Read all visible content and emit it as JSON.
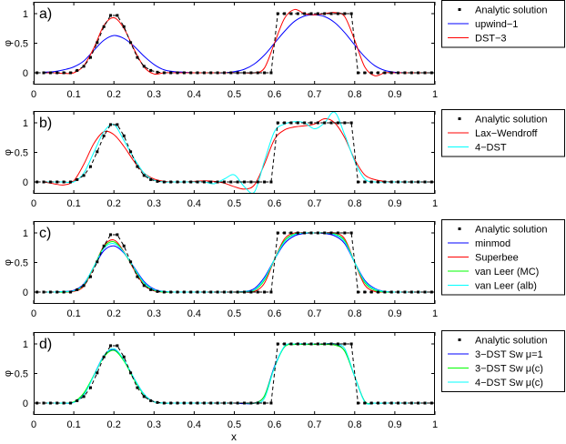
{
  "chart_data": {
    "type": "line",
    "xlabel": "x",
    "ylabel": "φ",
    "xlim": [
      0,
      1
    ],
    "ylim": [
      -0.2,
      1.2
    ],
    "x_ticks": [
      "0",
      "0.1",
      "0.2",
      "0.3",
      "0.4",
      "0.5",
      "0.6",
      "0.7",
      "0.8",
      "0.9",
      "1"
    ],
    "y_ticks": [
      "0",
      "0.5",
      "1"
    ],
    "grid": false,
    "legend_position": "outside-right",
    "colors": {
      "blue": "#0000ff",
      "red": "#ff0000",
      "green": "#00ff00",
      "cyan": "#00ffff",
      "black": "#000000"
    },
    "analytic": {
      "name": "Analytic solution",
      "x": [
        0.0083,
        0.025,
        0.0417,
        0.0583,
        0.075,
        0.0917,
        0.1083,
        0.125,
        0.1417,
        0.1583,
        0.175,
        0.1917,
        0.2083,
        0.225,
        0.2417,
        0.2583,
        0.275,
        0.2917,
        0.3083,
        0.325,
        0.3417,
        0.3583,
        0.375,
        0.3917,
        0.4083,
        0.425,
        0.4417,
        0.4583,
        0.475,
        0.4917,
        0.5083,
        0.525,
        0.5417,
        0.5583,
        0.575,
        0.5917,
        0.6083,
        0.625,
        0.6417,
        0.6583,
        0.675,
        0.6917,
        0.7083,
        0.725,
        0.7417,
        0.7583,
        0.775,
        0.7917,
        0.8083,
        0.825,
        0.8417,
        0.8583,
        0.875,
        0.8917,
        0.9083,
        0.925,
        0.9417,
        0.9583,
        0.975,
        0.9917
      ],
      "y": [
        0,
        0,
        0,
        0,
        0,
        0,
        0.04,
        0.11,
        0.26,
        0.51,
        0.78,
        0.97,
        0.97,
        0.78,
        0.51,
        0.26,
        0.11,
        0.04,
        0.01,
        0,
        0,
        0,
        0,
        0,
        0,
        0,
        0,
        0,
        0,
        0,
        0,
        0,
        0,
        0,
        0,
        0,
        1,
        1,
        1,
        1,
        1,
        1,
        1,
        1,
        1,
        1,
        1,
        1,
        0,
        0,
        0,
        0,
        0,
        0,
        0,
        0,
        0,
        0,
        0,
        0
      ]
    },
    "x": [
      0,
      0.025,
      0.05,
      0.075,
      0.1,
      0.125,
      0.15,
      0.175,
      0.2,
      0.225,
      0.25,
      0.275,
      0.3,
      0.325,
      0.35,
      0.375,
      0.4,
      0.425,
      0.45,
      0.475,
      0.5,
      0.525,
      0.55,
      0.575,
      0.6,
      0.625,
      0.65,
      0.675,
      0.7,
      0.725,
      0.75,
      0.775,
      0.8,
      0.825,
      0.85,
      0.875,
      0.9,
      0.925,
      0.95,
      0.975,
      1
    ],
    "panels": [
      {
        "label": "a)",
        "series": [
          {
            "name": "upwind−1",
            "color": "#0000ff",
            "values": [
              0,
              0.01,
              0.02,
              0.05,
              0.1,
              0.2,
              0.38,
              0.55,
              0.63,
              0.58,
              0.45,
              0.28,
              0.14,
              0.05,
              0.02,
              0.01,
              0,
              0,
              0,
              0,
              0.02,
              0.06,
              0.15,
              0.3,
              0.5,
              0.7,
              0.87,
              0.96,
              0.98,
              0.95,
              0.85,
              0.68,
              0.47,
              0.27,
              0.12,
              0.04,
              0.01,
              0,
              0,
              0,
              0
            ]
          },
          {
            "name": "DST−3",
            "color": "#ff0000",
            "values": [
              0,
              0,
              0,
              -0.01,
              0,
              0.12,
              0.42,
              0.8,
              0.93,
              0.75,
              0.4,
              0.1,
              -0.02,
              0,
              0,
              0,
              0,
              0,
              0,
              0,
              0,
              0,
              0,
              0.08,
              0.5,
              0.92,
              1.07,
              1.0,
              0.98,
              1.0,
              1.02,
              0.95,
              0.55,
              0.1,
              -0.05,
              0,
              0,
              0,
              0,
              0,
              0
            ]
          }
        ]
      },
      {
        "label": "b)",
        "series": [
          {
            "name": "Lax−Wendroff",
            "color": "#ff0000",
            "values": [
              0.01,
              0,
              -0.03,
              -0.05,
              0.02,
              0.3,
              0.65,
              0.85,
              0.8,
              0.6,
              0.35,
              0.15,
              0.05,
              0.01,
              0,
              0,
              0.01,
              0.02,
              0.01,
              -0.02,
              -0.08,
              -0.12,
              -0.05,
              0.3,
              0.72,
              0.88,
              0.93,
              0.95,
              0.98,
              1.07,
              1.0,
              0.75,
              0.38,
              0.12,
              0.04,
              0.01,
              0,
              0,
              0,
              0,
              0
            ]
          },
          {
            "name": "4−DST",
            "color": "#00ffff",
            "values": [
              0,
              0,
              0,
              0,
              0,
              0.15,
              0.5,
              0.85,
              0.97,
              0.7,
              0.4,
              0.15,
              0.03,
              0,
              0,
              0,
              0,
              0,
              -0.03,
              0.05,
              0.12,
              -0.08,
              -0.17,
              0.35,
              0.85,
              0.98,
              1.02,
              1.0,
              0.9,
              1.0,
              1.18,
              0.8,
              0.35,
              0.05,
              0,
              0,
              0,
              0,
              0,
              0,
              0
            ]
          }
        ]
      },
      {
        "label": "c)",
        "series": [
          {
            "name": "minmod",
            "color": "#0000ff",
            "values": [
              0,
              0,
              0,
              0.01,
              0.03,
              0.14,
              0.42,
              0.7,
              0.78,
              0.66,
              0.42,
              0.18,
              0.05,
              0.01,
              0,
              0,
              0,
              0,
              0,
              0,
              0,
              0.01,
              0.06,
              0.25,
              0.55,
              0.82,
              0.95,
              0.99,
              1.0,
              0.99,
              0.95,
              0.82,
              0.5,
              0.2,
              0.06,
              0.01,
              0,
              0,
              0,
              0,
              0
            ]
          },
          {
            "name": "Superbee",
            "color": "#ff0000",
            "values": [
              0,
              0,
              0,
              0,
              0.01,
              0.1,
              0.42,
              0.78,
              0.88,
              0.68,
              0.38,
              0.12,
              0.02,
              0,
              0,
              0,
              0,
              0,
              0,
              0,
              0,
              0,
              0.01,
              0.15,
              0.55,
              0.9,
              1.0,
              1.0,
              1.0,
              1.0,
              1.0,
              0.9,
              0.5,
              0.12,
              0.01,
              0,
              0,
              0,
              0,
              0,
              0
            ]
          },
          {
            "name": "van Leer (MC)",
            "color": "#00ff00",
            "values": [
              0,
              0,
              0,
              0,
              0.02,
              0.12,
              0.43,
              0.76,
              0.85,
              0.67,
              0.4,
              0.15,
              0.03,
              0,
              0,
              0,
              0,
              0,
              0,
              0,
              0,
              0,
              0.03,
              0.2,
              0.55,
              0.87,
              0.98,
              1.0,
              1.0,
              1.0,
              0.98,
              0.87,
              0.5,
              0.16,
              0.03,
              0,
              0,
              0,
              0,
              0,
              0
            ]
          },
          {
            "name": "van Leer (alb)",
            "color": "#00ffff",
            "values": [
              0,
              0,
              0,
              0.01,
              0.02,
              0.13,
              0.43,
              0.74,
              0.82,
              0.67,
              0.41,
              0.16,
              0.04,
              0.01,
              0,
              0,
              0,
              0,
              0,
              0,
              0,
              0.01,
              0.04,
              0.22,
              0.55,
              0.85,
              0.97,
              1.0,
              1.0,
              1.0,
              0.97,
              0.85,
              0.5,
              0.18,
              0.05,
              0.01,
              0,
              0,
              0,
              0,
              0
            ]
          }
        ]
      },
      {
        "label": "d)",
        "series": [
          {
            "name": "3−DST Sw μ=1",
            "color": "#0000ff",
            "values": [
              0,
              0,
              0,
              0,
              0.01,
              0.15,
              0.47,
              0.8,
              0.9,
              0.72,
              0.42,
              0.15,
              0.02,
              0,
              0,
              0,
              0,
              0,
              0,
              0,
              0,
              -0.01,
              0,
              0.12,
              0.62,
              0.95,
              1.0,
              1.0,
              1.0,
              1.0,
              1.0,
              0.88,
              0.45,
              0.03,
              0,
              0,
              0,
              0,
              0,
              0,
              0
            ]
          },
          {
            "name": "3−DST Sw μ(c)",
            "color": "#00ff00",
            "values": [
              0,
              0,
              0,
              0,
              0.02,
              0.17,
              0.47,
              0.78,
              0.89,
              0.71,
              0.4,
              0.14,
              0.02,
              0,
              0,
              0,
              0,
              0,
              0,
              0,
              0,
              0,
              0,
              0.12,
              0.6,
              0.95,
              0.99,
              0.99,
              0.99,
              0.99,
              0.98,
              0.88,
              0.45,
              0.03,
              0,
              0,
              0,
              0,
              0,
              0,
              0
            ]
          },
          {
            "name": "4−DST Sw μ(c)",
            "color": "#00ffff",
            "values": [
              0,
              0,
              0,
              0,
              0.01,
              0.14,
              0.46,
              0.8,
              0.92,
              0.73,
              0.42,
              0.15,
              0.02,
              0,
              0,
              0,
              0,
              0,
              0,
              0,
              0,
              0,
              0,
              0.08,
              0.6,
              0.96,
              1.0,
              1.0,
              1.0,
              1.0,
              1.0,
              0.92,
              0.45,
              0.02,
              0,
              0,
              0,
              0,
              0,
              0,
              0
            ]
          }
        ]
      }
    ]
  }
}
